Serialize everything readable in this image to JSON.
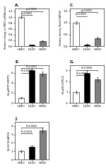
{
  "chart_data": [
    {
      "type": "bar",
      "title": "A.",
      "ylabel": "Relative change on RND1 mRNA level",
      "categories": [
        "HBEC",
        "H520",
        "H358"
      ],
      "values": [
        1.0,
        0.05,
        0.18
      ],
      "errors": [
        0.04,
        0.01,
        0.03
      ],
      "colors": [
        "white",
        "black",
        "gray"
      ],
      "ylim": [
        0,
        1.3
      ],
      "yticks": [
        0.0,
        0.2,
        0.4,
        0.6,
        0.8,
        1.0,
        1.2
      ],
      "annotations": [
        {
          "text": "p<0.0001",
          "from": "HBEC",
          "to": "H520",
          "y": 1.08
        },
        {
          "text": "p<0.0001",
          "from": "HBEC",
          "to": "H358",
          "y": 1.21
        }
      ]
    },
    {
      "type": "bar",
      "title": "C.",
      "ylabel": "Relative density (Rnd1/GAPDH)",
      "categories": [
        "HBEC",
        "H520",
        "H358"
      ],
      "values": [
        1.0,
        0.08,
        0.35
      ],
      "errors": [
        0.05,
        0.01,
        0.05
      ],
      "colors": [
        "white",
        "black",
        "gray"
      ],
      "ylim": [
        0,
        1.6
      ],
      "yticks": [
        0.0,
        0.5,
        1.0,
        1.5
      ],
      "annotations": [
        {
          "text": "p<0.0001",
          "from": "HBEC",
          "to": "H520",
          "y": 1.28
        },
        {
          "text": "p<0.0001",
          "from": "HBEC",
          "to": "H358",
          "y": 1.45
        }
      ]
    },
    {
      "type": "bar",
      "title": "E.",
      "ylabel": "Rel.pMYPT1/MYPT1",
      "categories": [
        "HBEC",
        "H520",
        "H358"
      ],
      "values": [
        1.0,
        6.5,
        5.8
      ],
      "errors": [
        0.15,
        0.3,
        0.4
      ],
      "colors": [
        "white",
        "black",
        "gray"
      ],
      "ylim": [
        0,
        7.5
      ],
      "yticks": [
        0,
        2,
        4,
        6
      ],
      "annotations": [
        {
          "text": "P=0.0004",
          "from": "HBEC",
          "to": "H520",
          "y": 6.0
        },
        {
          "text": "P<0.0001",
          "from": "HBEC",
          "to": "H358",
          "y": 6.9
        }
      ]
    },
    {
      "type": "bar",
      "title": "G.",
      "ylabel": "Rel.pMLC2/MLC2",
      "categories": [
        "HBEC",
        "H520",
        "H358"
      ],
      "values": [
        1.0,
        2.8,
        2.2
      ],
      "errors": [
        0.12,
        0.25,
        0.2
      ],
      "colors": [
        "white",
        "black",
        "gray"
      ],
      "ylim": [
        0,
        3.5
      ],
      "yticks": [
        0,
        1,
        2,
        3
      ],
      "annotations": [
        {
          "text": "P=0.0011",
          "from": "HBEC",
          "to": "H520",
          "y": 2.55
        },
        {
          "text": "P=0.0006",
          "from": "HBEC",
          "to": "H358",
          "y": 3.05
        }
      ]
    },
    {
      "type": "bar",
      "title": "J.",
      "ylabel": "Rel.NICD/GAPDH",
      "categories": [
        "HBEC",
        "H520",
        "H358"
      ],
      "values": [
        1.0,
        1.5,
        3.5
      ],
      "errors": [
        0.12,
        0.2,
        0.3
      ],
      "colors": [
        "white",
        "black",
        "gray"
      ],
      "ylim": [
        0,
        4.5
      ],
      "yticks": [
        0,
        1,
        2,
        3,
        4
      ],
      "annotations": [
        {
          "text": "P=0.0014",
          "from": "HBEC",
          "to": "H520",
          "y": 3.1
        },
        {
          "text": "P=0.0063",
          "from": "HBEC",
          "to": "H358",
          "y": 3.8
        }
      ]
    }
  ]
}
